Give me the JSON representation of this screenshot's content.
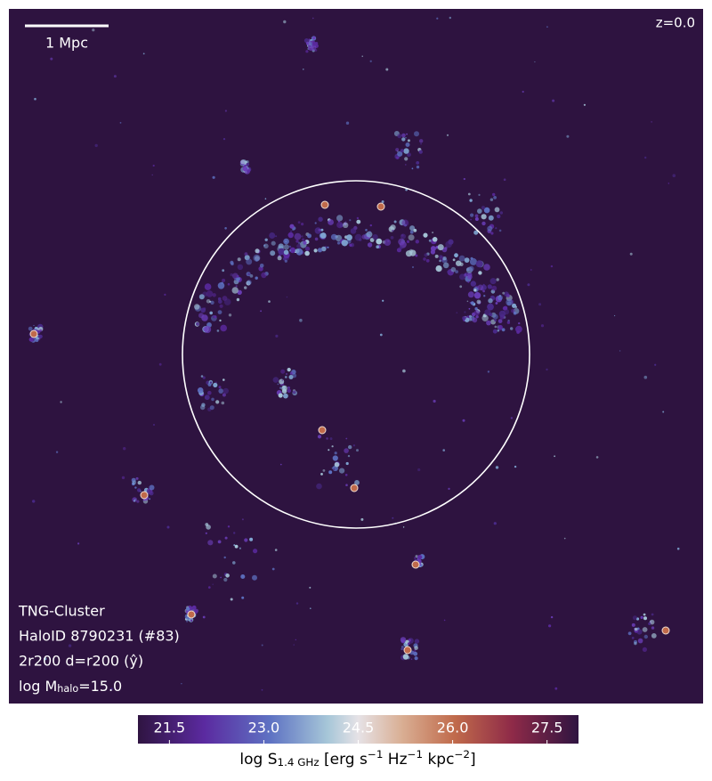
{
  "chart_data": {
    "type": "map",
    "redshift_label": "z=0.0",
    "scale_bar_label": "1 Mpc",
    "annotations": [
      "TNG-Cluster",
      "HaloID 8790231 (#83)",
      "2r200 d=r200 (ŷ)"
    ],
    "mass_label": [
      {
        "text": "log M"
      },
      {
        "sub": "halo"
      },
      {
        "text": "=15.0"
      }
    ],
    "colorbar": {
      "clim": [
        21.0,
        28.0
      ],
      "ticks": [
        21.5,
        {
          "value": 23,
          "label": "23.0"
        },
        24.5,
        {
          "value": 26,
          "label": "26.0"
        },
        27.5
      ],
      "label": [
        {
          "text": "log S"
        },
        {
          "sub": "1.4 GHz"
        },
        {
          "text": " [erg s"
        },
        {
          "sup": "−1"
        },
        {
          "text": " Hz"
        },
        {
          "sup": "−1"
        },
        {
          "text": " kpc"
        },
        {
          "sup": "−2"
        },
        {
          "text": "]"
        }
      ]
    }
  }
}
